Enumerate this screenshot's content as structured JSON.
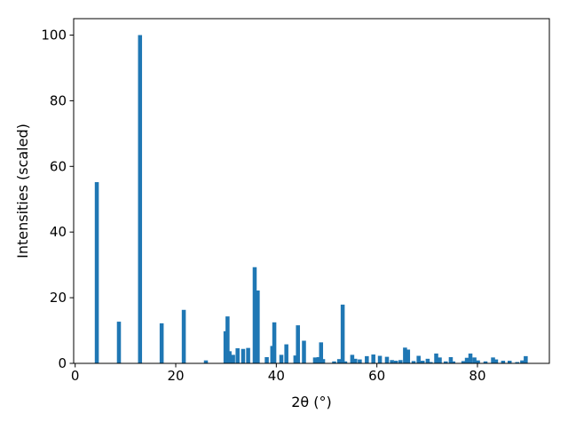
{
  "chart_data": {
    "type": "bar",
    "title": "",
    "xlabel": "2θ (°)",
    "ylabel": "Intensities (scaled)",
    "xlim": [
      -0.3,
      94.3
    ],
    "ylim": [
      0,
      105
    ],
    "xticks": [
      0,
      20,
      40,
      60,
      80
    ],
    "yticks": [
      0,
      20,
      40,
      60,
      80,
      100
    ],
    "grid": false,
    "legend": "none",
    "bar_color": "#1f77b4",
    "bar_width": 0.8,
    "series": [
      {
        "x": [
          4.3,
          8.7,
          12.9,
          17.2,
          21.6,
          26.0,
          29.9,
          30.3,
          30.7,
          31.4,
          32.3,
          33.4,
          34.4,
          35.7,
          36.3,
          38.1,
          39.2,
          39.6,
          41.0,
          42.0,
          43.8,
          44.3,
          45.5,
          47.7,
          48.4,
          48.9,
          49.3,
          51.5,
          52.5,
          53.2,
          53.7,
          55.1,
          55.7,
          56.6,
          58.0,
          59.3,
          60.6,
          62.0,
          63.0,
          63.8,
          64.7,
          65.6,
          66.2,
          67.3,
          68.3,
          69.1,
          70.1,
          70.7,
          71.8,
          72.5,
          73.7,
          74.7,
          75.2,
          77.2,
          77.9,
          78.6,
          79.4,
          80.1,
          81.6,
          83.1,
          83.7,
          85.1,
          86.4,
          87.9,
          88.9,
          89.6
        ],
        "values": [
          55.2,
          12.7,
          100,
          12.2,
          16.3,
          0.9,
          9.8,
          14.3,
          3.7,
          2.6,
          4.6,
          4.4,
          4.7,
          29.3,
          22.2,
          1.9,
          5.3,
          12.5,
          2.6,
          5.8,
          2.4,
          11.6,
          6.9,
          1.8,
          1.9,
          6.4,
          1.3,
          0.6,
          1.3,
          17.9,
          0.6,
          2.6,
          1.4,
          1.2,
          2.2,
          2.7,
          2.3,
          2.0,
          1.0,
          0.8,
          1.0,
          4.8,
          4.2,
          0.7,
          2.3,
          0.8,
          1.4,
          0.4,
          3.0,
          1.8,
          0.6,
          1.9,
          0.6,
          0.7,
          1.7,
          3.0,
          1.8,
          0.9,
          0.6,
          1.8,
          1.2,
          0.8,
          0.8,
          0.4,
          0.9,
          2.2
        ]
      }
    ]
  }
}
